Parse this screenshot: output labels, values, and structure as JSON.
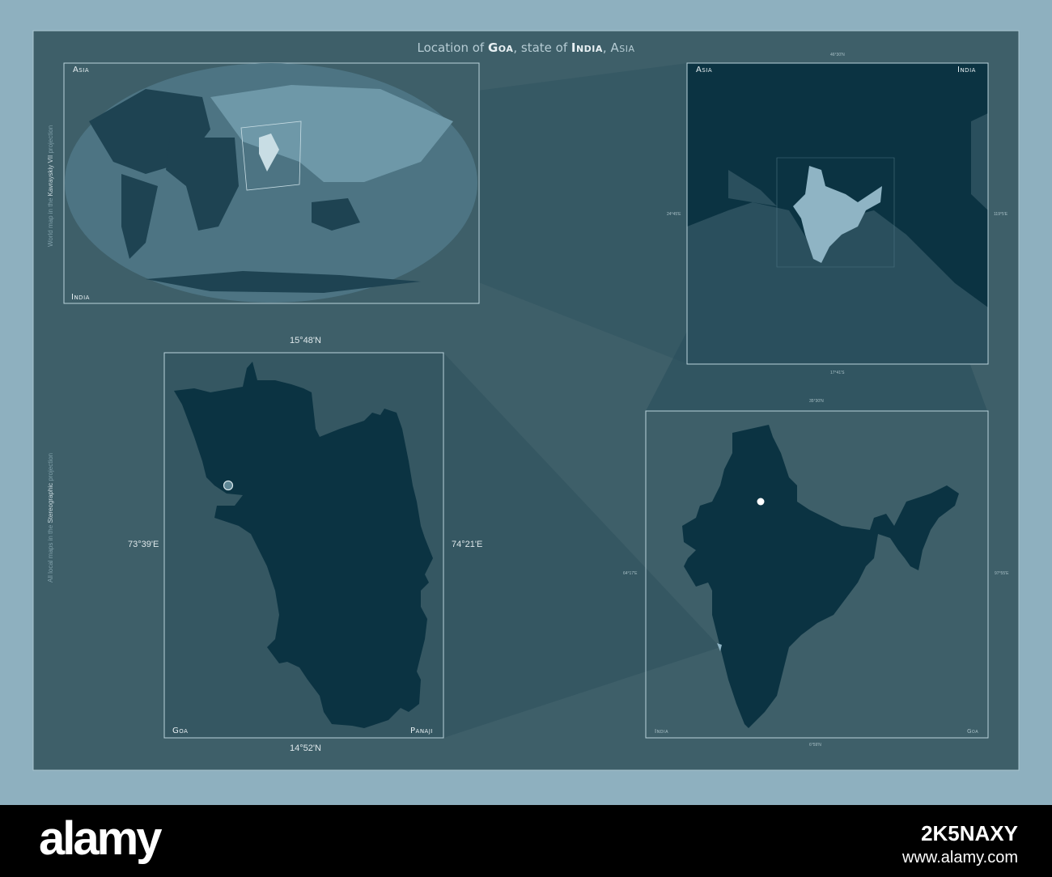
{
  "title": {
    "prefix": "Location of ",
    "state": "Goa",
    "mid": ", state of ",
    "country": "India",
    "sep": ", ",
    "continent": "Asia"
  },
  "world_panel": {
    "label_top": "Asia",
    "label_bottom": "India",
    "projection_prefix": "World map in the ",
    "projection_name": "Kavrayskiy VII",
    "projection_suffix": " projection"
  },
  "asia_panel": {
    "label_left": "Asia",
    "label_right": "India",
    "coord_top": "46°30'N",
    "coord_left": "24°45'E",
    "coord_right": "119°5'E",
    "coord_bottom": "17°41'S"
  },
  "goa_panel": {
    "label_left": "Goa",
    "label_right": "Panaji",
    "coord_top": "15°48'N",
    "coord_left": "73°39'E",
    "coord_right": "74°21'E",
    "coord_bottom": "14°52'N"
  },
  "india_panel": {
    "label_left": "India",
    "label_right": "Goa",
    "coord_top": "35°30'N",
    "coord_left": "64°17'E",
    "coord_right": "97°55'E",
    "coord_bottom": "6°59'N"
  },
  "local_projection": {
    "prefix": "All local maps in the ",
    "name": "Stereographic",
    "suffix": " projection"
  },
  "footer": {
    "logo": "alamy",
    "image_id": "2K5NAXY",
    "url": "www.alamy.com"
  },
  "colors": {
    "background": "#8eb0bf",
    "panel": "#3e5f69",
    "land_dark": "#0b3342",
    "highlight": "#8fb4c4",
    "footer": "#000000"
  }
}
